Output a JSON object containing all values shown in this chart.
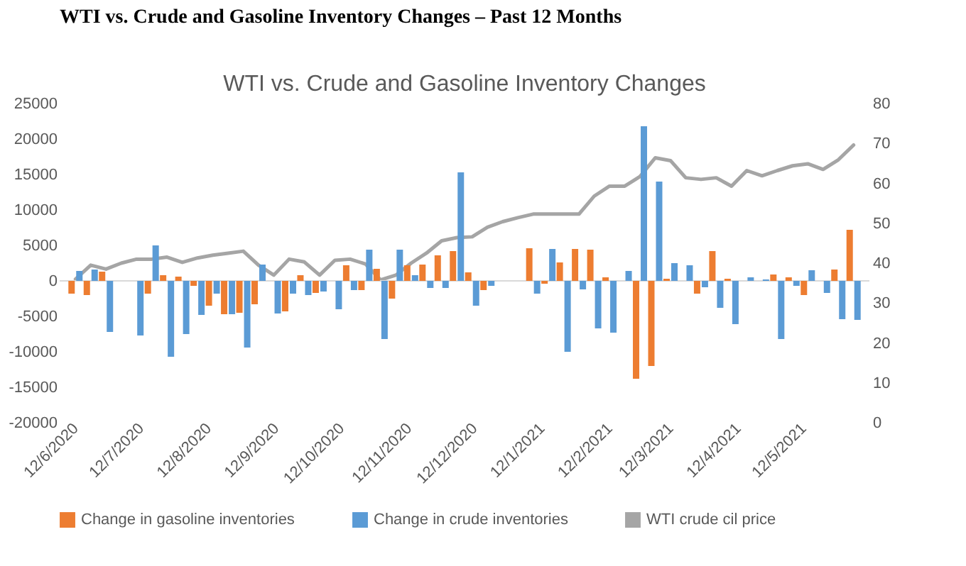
{
  "chart_data": {
    "type": "bar",
    "title": "WTI vs. Crude and Gasoline Inventory Changes – Past 12 Months",
    "subtitle": "WTI vs. Crude and Gasoline Inventory Changes",
    "x": [
      "2020-06-12",
      "2020-06-19",
      "2020-06-26",
      "2020-07-03",
      "2020-07-10",
      "2020-07-17",
      "2020-07-24",
      "2020-07-31",
      "2020-08-07",
      "2020-08-14",
      "2020-08-21",
      "2020-08-28",
      "2020-09-04",
      "2020-09-11",
      "2020-09-18",
      "2020-09-25",
      "2020-10-02",
      "2020-10-09",
      "2020-10-16",
      "2020-10-23",
      "2020-10-30",
      "2020-11-06",
      "2020-11-13",
      "2020-11-20",
      "2020-11-27",
      "2020-12-04",
      "2020-12-11",
      "2020-12-18",
      "2020-12-25",
      "2021-01-01",
      "2021-01-08",
      "2021-01-15",
      "2021-01-22",
      "2021-01-29",
      "2021-02-05",
      "2021-02-12",
      "2021-02-19",
      "2021-02-26",
      "2021-03-05",
      "2021-03-12",
      "2021-03-19",
      "2021-03-26",
      "2021-04-02",
      "2021-04-09",
      "2021-04-16",
      "2021-04-23",
      "2021-04-30",
      "2021-05-07",
      "2021-05-14",
      "2021-05-21",
      "2021-05-28",
      "2021-06-04"
    ],
    "xlim": [
      "2020-06-08",
      "2021-06-08"
    ],
    "xticks": [
      {
        "value": "2020-06-12",
        "label": "12/6/2020"
      },
      {
        "value": "2020-07-12",
        "label": "12/7/2020"
      },
      {
        "value": "2020-08-12",
        "label": "12/8/2020"
      },
      {
        "value": "2020-09-12",
        "label": "12/9/2020"
      },
      {
        "value": "2020-10-12",
        "label": "12/10/2020"
      },
      {
        "value": "2020-11-12",
        "label": "12/11/2020"
      },
      {
        "value": "2020-12-12",
        "label": "12/12/2020"
      },
      {
        "value": "2021-01-12",
        "label": "12/1/2021"
      },
      {
        "value": "2021-02-12",
        "label": "12/2/2021"
      },
      {
        "value": "2021-03-12",
        "label": "12/3/2021"
      },
      {
        "value": "2021-04-12",
        "label": "12/4/2021"
      },
      {
        "value": "2021-05-12",
        "label": "12/5/2021"
      }
    ],
    "ylim": [
      -20000,
      25000
    ],
    "yticks": [
      -20000,
      -15000,
      -10000,
      -5000,
      0,
      5000,
      10000,
      15000,
      20000,
      25000
    ],
    "y2lim": [
      0,
      80
    ],
    "y2ticks": [
      0,
      10,
      20,
      30,
      40,
      50,
      60,
      70,
      80
    ],
    "grid": false,
    "legend": "bottom",
    "ref_lines": [
      {
        "axis": "y",
        "value": 0,
        "color": "#d9d9d9"
      }
    ],
    "series": [
      {
        "name": "Change in gasoline inventories",
        "color": "#ed7d31",
        "values": [
          -1800,
          -2000,
          1300,
          null,
          null,
          -1800,
          800,
          600,
          -700,
          -3500,
          -4700,
          -4500,
          -3300,
          null,
          -4300,
          800,
          -1700,
          null,
          2200,
          -1300,
          1700,
          -2500,
          2200,
          2300,
          3600,
          4200,
          1200,
          -1300,
          null,
          null,
          4600,
          -400,
          2600,
          4500,
          4400,
          500,
          null,
          -13800,
          -12000,
          300,
          null,
          -1800,
          4200,
          300,
          null,
          null,
          900,
          500,
          -2000,
          null,
          1600,
          7200
        ]
      },
      {
        "name": "Change in crude inventories",
        "color": "#5b9bd5",
        "values": [
          1400,
          1600,
          -7200,
          null,
          -7700,
          5000,
          -10700,
          -7500,
          -4800,
          -1800,
          -4700,
          -9400,
          2300,
          -4600,
          -1800,
          -2000,
          -1500,
          -4000,
          -1300,
          4400,
          -8200,
          4400,
          800,
          -1000,
          -1000,
          15300,
          -3500,
          -700,
          null,
          null,
          -1800,
          4500,
          -10000,
          -1200,
          -6700,
          -7300,
          1400,
          21800,
          14000,
          2500,
          2200,
          -900,
          -3800,
          -6100,
          500,
          200,
          -8200,
          -700,
          1500,
          -1700,
          -5400,
          -5500
        ]
      },
      {
        "name": "WTI crude cil price",
        "color": "#a5a5a5",
        "type": "line",
        "axis": "y2",
        "values": [
          36.0,
          39.5,
          38.5,
          40.0,
          41.0,
          41.0,
          41.5,
          40.2,
          41.3,
          42.0,
          42.5,
          43.0,
          39.5,
          37.0,
          41.0,
          40.3,
          37.0,
          40.7,
          41.0,
          39.8,
          35.8,
          37.0,
          40.0,
          42.5,
          45.6,
          46.4,
          46.6,
          49.0,
          50.4,
          51.4,
          52.3,
          52.3,
          52.3,
          52.3,
          56.8,
          59.3,
          59.3,
          61.7,
          66.4,
          65.7,
          61.4,
          61.0,
          61.4,
          59.3,
          63.2,
          61.9,
          63.2,
          64.4,
          64.9,
          63.5,
          65.9,
          69.6
        ]
      }
    ]
  }
}
